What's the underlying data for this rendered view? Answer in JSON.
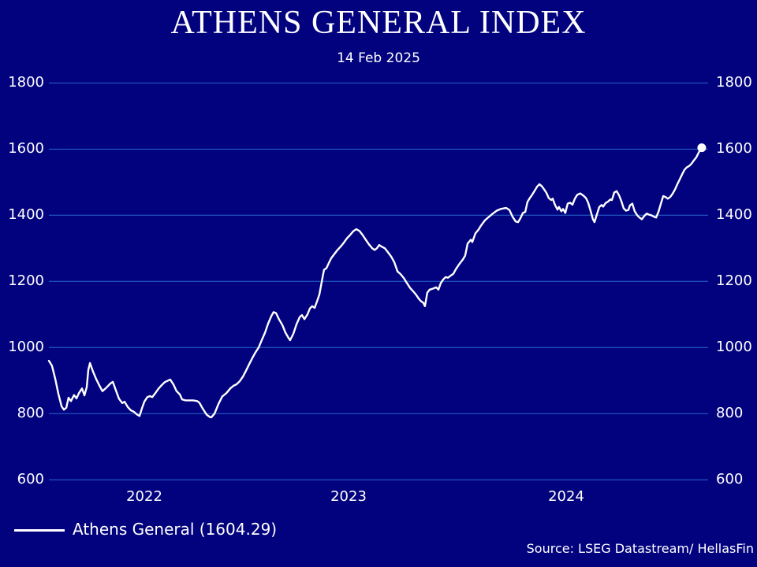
{
  "header": {
    "title": "ATHENS GENERAL INDEX",
    "subtitle": "14 Feb 2025"
  },
  "legend": {
    "label": "Athens General (1604.29)"
  },
  "source": {
    "text": "Source: LSEG Datastream/ HellasFin"
  },
  "colors": {
    "background": "#02027e",
    "gridline": "#2767cd",
    "line": "#ffffff",
    "text": "#ffffff",
    "end_marker": "#ffffff"
  },
  "chart_data": {
    "type": "line",
    "title": "ATHENS GENERAL INDEX",
    "subtitle": "14 Feb 2025",
    "xlabel": "",
    "ylabel": "",
    "ylim": [
      600,
      1800
    ],
    "y_ticks": [
      600,
      800,
      1000,
      1200,
      1400,
      1600,
      1800
    ],
    "y_tick_sides": "both",
    "grid": "horizontal",
    "legend_position": "bottom-left",
    "x_ticks": [
      {
        "label": "2022",
        "t": 2022.5
      },
      {
        "label": "2023",
        "t": 2023.5
      },
      {
        "label": "2024",
        "t": 2024.5
      }
    ],
    "x_range_years": [
      2022.03,
      2025.12
    ],
    "series": [
      {
        "name": "Athens General",
        "last_value": 1604.29,
        "last_date": "14 Feb 2025",
        "end_marker": "dot",
        "points": [
          [
            2022.033,
            960
          ],
          [
            2022.048,
            945
          ],
          [
            2022.064,
            905
          ],
          [
            2022.079,
            860
          ],
          [
            2022.095,
            822
          ],
          [
            2022.106,
            812
          ],
          [
            2022.118,
            818
          ],
          [
            2022.129,
            848
          ],
          [
            2022.141,
            838
          ],
          [
            2022.156,
            856
          ],
          [
            2022.168,
            846
          ],
          [
            2022.18,
            862
          ],
          [
            2022.195,
            876
          ],
          [
            2022.207,
            855
          ],
          [
            2022.218,
            880
          ],
          [
            2022.226,
            932
          ],
          [
            2022.234,
            953
          ],
          [
            2022.249,
            927
          ],
          [
            2022.264,
            905
          ],
          [
            2022.28,
            885
          ],
          [
            2022.295,
            868
          ],
          [
            2022.315,
            879
          ],
          [
            2022.334,
            891
          ],
          [
            2022.346,
            896
          ],
          [
            2022.361,
            870
          ],
          [
            2022.376,
            845
          ],
          [
            2022.392,
            832
          ],
          [
            2022.403,
            836
          ],
          [
            2022.419,
            820
          ],
          [
            2022.434,
            810
          ],
          [
            2022.45,
            805
          ],
          [
            2022.465,
            797
          ],
          [
            2022.477,
            793
          ],
          [
            2022.488,
            815
          ],
          [
            2022.5,
            836
          ],
          [
            2022.515,
            850
          ],
          [
            2022.527,
            853
          ],
          [
            2022.539,
            850
          ],
          [
            2022.554,
            862
          ],
          [
            2022.569,
            875
          ],
          [
            2022.585,
            886
          ],
          [
            2022.6,
            895
          ],
          [
            2022.616,
            900
          ],
          [
            2022.627,
            903
          ],
          [
            2022.643,
            888
          ],
          [
            2022.658,
            868
          ],
          [
            2022.674,
            858
          ],
          [
            2022.685,
            843
          ],
          [
            2022.701,
            840
          ],
          [
            2022.72,
            840
          ],
          [
            2022.739,
            840
          ],
          [
            2022.759,
            838
          ],
          [
            2022.77,
            833
          ],
          [
            2022.786,
            815
          ],
          [
            2022.805,
            797
          ],
          [
            2022.82,
            790
          ],
          [
            2022.828,
            789
          ],
          [
            2022.844,
            800
          ],
          [
            2022.863,
            829
          ],
          [
            2022.882,
            852
          ],
          [
            2022.902,
            862
          ],
          [
            2022.921,
            876
          ],
          [
            2022.936,
            884
          ],
          [
            2022.952,
            889
          ],
          [
            2022.967,
            898
          ],
          [
            2022.983,
            912
          ],
          [
            2022.998,
            930
          ],
          [
            2023.014,
            950
          ],
          [
            2023.029,
            968
          ],
          [
            2023.044,
            985
          ],
          [
            2023.06,
            1000
          ],
          [
            2023.075,
            1022
          ],
          [
            2023.091,
            1045
          ],
          [
            2023.106,
            1072
          ],
          [
            2023.122,
            1095
          ],
          [
            2023.133,
            1107
          ],
          [
            2023.145,
            1104
          ],
          [
            2023.16,
            1085
          ],
          [
            2023.176,
            1068
          ],
          [
            2023.191,
            1045
          ],
          [
            2023.207,
            1028
          ],
          [
            2023.214,
            1022
          ],
          [
            2023.23,
            1042
          ],
          [
            2023.245,
            1070
          ],
          [
            2023.261,
            1092
          ],
          [
            2023.272,
            1098
          ],
          [
            2023.284,
            1086
          ],
          [
            2023.299,
            1100
          ],
          [
            2023.311,
            1118
          ],
          [
            2023.322,
            1125
          ],
          [
            2023.334,
            1120
          ],
          [
            2023.346,
            1140
          ],
          [
            2023.357,
            1160
          ],
          [
            2023.369,
            1200
          ],
          [
            2023.38,
            1235
          ],
          [
            2023.392,
            1240
          ],
          [
            2023.403,
            1255
          ],
          [
            2023.415,
            1270
          ],
          [
            2023.431,
            1283
          ],
          [
            2023.446,
            1295
          ],
          [
            2023.461,
            1305
          ],
          [
            2023.477,
            1317
          ],
          [
            2023.492,
            1330
          ],
          [
            2023.507,
            1340
          ],
          [
            2023.522,
            1352
          ],
          [
            2023.536,
            1358
          ],
          [
            2023.551,
            1352
          ],
          [
            2023.565,
            1340
          ],
          [
            2023.58,
            1325
          ],
          [
            2023.594,
            1312
          ],
          [
            2023.609,
            1300
          ],
          [
            2023.62,
            1295
          ],
          [
            2023.63,
            1300
          ],
          [
            2023.641,
            1310
          ],
          [
            2023.652,
            1305
          ],
          [
            2023.667,
            1300
          ],
          [
            2023.681,
            1288
          ],
          [
            2023.696,
            1275
          ],
          [
            2023.71,
            1258
          ],
          [
            2023.725,
            1230
          ],
          [
            2023.739,
            1222
          ],
          [
            2023.754,
            1210
          ],
          [
            2023.768,
            1195
          ],
          [
            2023.783,
            1180
          ],
          [
            2023.797,
            1170
          ],
          [
            2023.812,
            1158
          ],
          [
            2023.822,
            1148
          ],
          [
            2023.833,
            1140
          ],
          [
            2023.844,
            1135
          ],
          [
            2023.851,
            1125
          ],
          [
            2023.862,
            1166
          ],
          [
            2023.873,
            1175
          ],
          [
            2023.888,
            1178
          ],
          [
            2023.902,
            1182
          ],
          [
            2023.913,
            1175
          ],
          [
            2023.924,
            1195
          ],
          [
            2023.935,
            1206
          ],
          [
            2023.946,
            1213
          ],
          [
            2023.957,
            1211
          ],
          [
            2023.971,
            1218
          ],
          [
            2023.982,
            1223
          ],
          [
            2023.993,
            1237
          ],
          [
            2024.011,
            1254
          ],
          [
            2024.025,
            1266
          ],
          [
            2024.036,
            1278
          ],
          [
            2024.047,
            1314
          ],
          [
            2024.062,
            1326
          ],
          [
            2024.069,
            1319
          ],
          [
            2024.083,
            1345
          ],
          [
            2024.098,
            1357
          ],
          [
            2024.109,
            1369
          ],
          [
            2024.127,
            1385
          ],
          [
            2024.145,
            1395
          ],
          [
            2024.163,
            1405
          ],
          [
            2024.181,
            1414
          ],
          [
            2024.199,
            1419
          ],
          [
            2024.214,
            1421
          ],
          [
            2024.225,
            1422
          ],
          [
            2024.239,
            1416
          ],
          [
            2024.254,
            1395
          ],
          [
            2024.268,
            1381
          ],
          [
            2024.279,
            1379
          ],
          [
            2024.29,
            1391
          ],
          [
            2024.301,
            1407
          ],
          [
            2024.312,
            1410
          ],
          [
            2024.322,
            1440
          ],
          [
            2024.333,
            1452
          ],
          [
            2024.344,
            1462
          ],
          [
            2024.355,
            1474
          ],
          [
            2024.366,
            1486
          ],
          [
            2024.377,
            1494
          ],
          [
            2024.388,
            1488
          ],
          [
            2024.399,
            1478
          ],
          [
            2024.409,
            1468
          ],
          [
            2024.42,
            1452
          ],
          [
            2024.431,
            1446
          ],
          [
            2024.438,
            1450
          ],
          [
            2024.449,
            1431
          ],
          [
            2024.46,
            1417
          ],
          [
            2024.467,
            1425
          ],
          [
            2024.478,
            1412
          ],
          [
            2024.486,
            1419
          ],
          [
            2024.496,
            1407
          ],
          [
            2024.507,
            1435
          ],
          [
            2024.518,
            1438
          ],
          [
            2024.529,
            1432
          ],
          [
            2024.54,
            1450
          ],
          [
            2024.551,
            1462
          ],
          [
            2024.565,
            1466
          ],
          [
            2024.58,
            1459
          ],
          [
            2024.591,
            1452
          ],
          [
            2024.601,
            1438
          ],
          [
            2024.612,
            1414
          ],
          [
            2024.623,
            1388
          ],
          [
            2024.63,
            1379
          ],
          [
            2024.641,
            1402
          ],
          [
            2024.652,
            1425
          ],
          [
            2024.663,
            1431
          ],
          [
            2024.67,
            1426
          ],
          [
            2024.681,
            1437
          ],
          [
            2024.692,
            1441
          ],
          [
            2024.703,
            1448
          ],
          [
            2024.71,
            1446
          ],
          [
            2024.721,
            1469
          ],
          [
            2024.732,
            1473
          ],
          [
            2024.743,
            1460
          ],
          [
            2024.754,
            1442
          ],
          [
            2024.764,
            1421
          ],
          [
            2024.775,
            1414
          ],
          [
            2024.786,
            1416
          ],
          [
            2024.793,
            1430
          ],
          [
            2024.804,
            1435
          ],
          [
            2024.815,
            1412
          ],
          [
            2024.826,
            1400
          ],
          [
            2024.837,
            1393
          ],
          [
            2024.848,
            1388
          ],
          [
            2024.859,
            1398
          ],
          [
            2024.87,
            1405
          ],
          [
            2024.88,
            1402
          ],
          [
            2024.891,
            1400
          ],
          [
            2024.902,
            1396
          ],
          [
            2024.913,
            1393
          ],
          [
            2024.924,
            1410
          ],
          [
            2024.935,
            1435
          ],
          [
            2024.946,
            1458
          ],
          [
            2024.957,
            1455
          ],
          [
            2024.967,
            1450
          ],
          [
            2024.978,
            1455
          ],
          [
            2024.989,
            1465
          ],
          [
            2025.0,
            1478
          ],
          [
            2025.011,
            1494
          ],
          [
            2025.022,
            1509
          ],
          [
            2025.033,
            1524
          ],
          [
            2025.043,
            1537
          ],
          [
            2025.054,
            1545
          ],
          [
            2025.065,
            1549
          ],
          [
            2025.076,
            1556
          ],
          [
            2025.087,
            1566
          ],
          [
            2025.098,
            1575
          ],
          [
            2025.109,
            1590
          ],
          [
            2025.123,
            1604.29
          ]
        ]
      }
    ]
  }
}
